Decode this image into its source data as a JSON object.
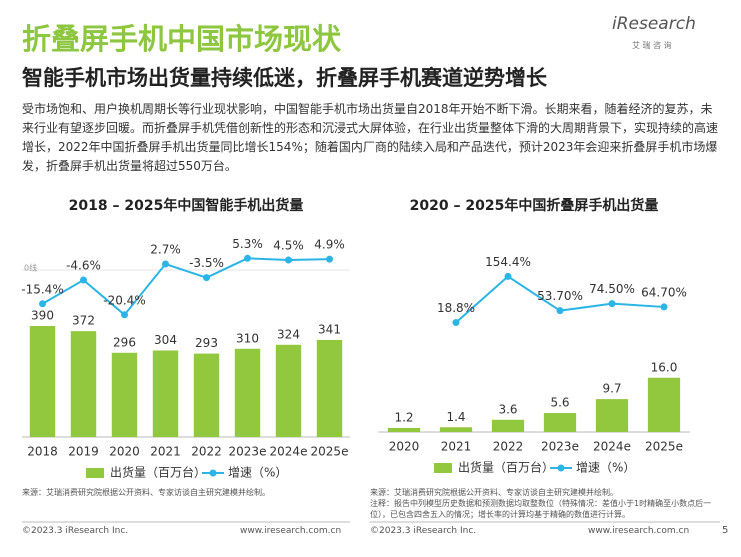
{
  "header": {
    "title": "折叠屏手机中国市场现状",
    "logo": "iResearch",
    "logo_sub": "艾 瑞 咨 询"
  },
  "subtitle": "智能手机市场出货量持续低迷，折叠屏手机赛道逆势增长",
  "body": "受市场饱和、用户换机周期长等行业现状影响，中国智能手机市场出货量自2018年开始不断下滑。长期来看，随着经济的复苏，未来行业有望逐步回暖。而折叠屏手机凭借创新性的形态和沉浸式大屏体验，在行业出货量整体下滑的大周期背景下，实现持续的高速增长，2022年中国折叠屏手机出货量同比增长154%；随着国内厂商的陆续入局和产品迭代，预计2023年会迎来折叠屏手机市场爆发，折叠屏手机出货量将超过550万台。",
  "chart_data": [
    {
      "type": "bar_line",
      "title": "2018 – 2025年中国智能手机出货量",
      "categories": [
        "2018",
        "2019",
        "2020",
        "2021",
        "2022",
        "2023e",
        "2024e",
        "2025e"
      ],
      "series": [
        {
          "name": "出货量（百万台）",
          "kind": "bar",
          "color": "#92c83e",
          "values": [
            390,
            372,
            296,
            304,
            293,
            310,
            324,
            341
          ]
        },
        {
          "name": "增速（%）",
          "kind": "line",
          "axis": "y2",
          "color": "#2bb5e6",
          "values": [
            -15.4,
            -4.6,
            -20.4,
            2.7,
            -3.5,
            5.3,
            4.5,
            4.9
          ],
          "value_labels": [
            "-15.4%",
            "-4.6%",
            "-20.4%",
            "2.7%",
            "-3.5%",
            "5.3%",
            "4.5%",
            "4.9%"
          ]
        }
      ],
      "ylim": [
        0,
        780
      ],
      "y2lim": [
        -76,
        25
      ],
      "zero_line_label": "0线",
      "source": "来源：艾瑞消费研究院根据公开资料、专家访谈自主研究建模并绘制。"
    },
    {
      "type": "bar_line",
      "title": "2020 – 2025年中国折叠屏手机出货量",
      "categories": [
        "2020",
        "2021",
        "2022",
        "2023e",
        "2024e",
        "2025e"
      ],
      "series": [
        {
          "name": "出货量（百万台）",
          "kind": "bar",
          "color": "#92c83e",
          "values": [
            1.2,
            1.4,
            3.6,
            5.6,
            9.7,
            16.0
          ],
          "value_labels": [
            "1.2",
            "1.4",
            "3.6",
            "5.6",
            "9.7",
            "16.0"
          ]
        },
        {
          "name": "增速（%）",
          "kind": "line",
          "axis": "y2",
          "color": "#2bb5e6",
          "values": [
            null,
            18.8,
            154.4,
            53.7,
            74.5,
            64.7
          ],
          "value_labels": [
            null,
            "18.8%",
            "154.4%",
            "53.70%",
            "74.50%",
            "64.70%"
          ]
        }
      ],
      "ylim": [
        0,
        64
      ],
      "y2lim": [
        -303,
        335
      ],
      "source": "来源：艾瑞消费研究院根据公开资料、专家访谈自主研究建模并绘制。",
      "note": "注释：报告中列模型历史数据和预测数据均取整数位（特殊情况：差值小于1时精确至小数点后一位），已包含四舍五入的情况；增长率的计算均基于精确的数值进行计算。"
    }
  ],
  "footer": {
    "copyright": "©2023.3 iResearch Inc.",
    "url": "www.iresearch.com.cn",
    "page": "5"
  }
}
